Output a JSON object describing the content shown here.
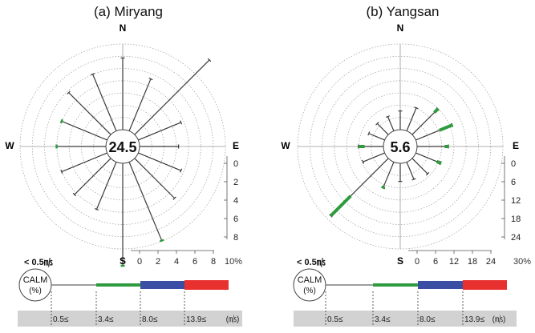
{
  "chart_data": [
    {
      "type": "wind-rose",
      "title": "(a) Miryang",
      "calm_percent": "24.5",
      "directions": [
        "N",
        "E",
        "S",
        "W"
      ],
      "radial_ticks_vertical": [
        "0",
        "2",
        "4",
        "6",
        "8"
      ],
      "radial_ticks_horizontal": [
        "0",
        "2",
        "4",
        "6",
        "8"
      ],
      "radial_unit": "10%",
      "petals": [
        {
          "dir": "N",
          "freq": 7.0
        },
        {
          "dir": "NNE",
          "freq": 5.5
        },
        {
          "dir": "NE",
          "freq": 10.3
        },
        {
          "dir": "ENE",
          "freq": 4.5
        },
        {
          "dir": "E",
          "freq": 3.8
        },
        {
          "dir": "ESE",
          "freq": 4.5
        },
        {
          "dir": "SE",
          "freq": 5.5
        },
        {
          "dir": "SSE",
          "freq": 8.3
        },
        {
          "dir": "S",
          "freq": 10.0
        },
        {
          "dir": "SSW",
          "freq": 5.0
        },
        {
          "dir": "SW",
          "freq": 5.0
        },
        {
          "dir": "WSW",
          "freq": 4.8
        },
        {
          "dir": "W",
          "freq": 4.8
        },
        {
          "dir": "WNW",
          "freq": 4.8
        },
        {
          "dir": "NW",
          "freq": 5.8
        },
        {
          "dir": "NNW",
          "freq": 6.0
        }
      ],
      "speed_colored_petals": [
        {
          "dir": "S",
          "class": "3.4≤"
        },
        {
          "dir": "SSE",
          "class": "3.4≤"
        },
        {
          "dir": "W",
          "class": "3.4≤"
        },
        {
          "dir": "WNW",
          "class": "3.4≤"
        }
      ]
    },
    {
      "type": "wind-rose",
      "title": "(b) Yangsan",
      "calm_percent": "5.6",
      "directions": [
        "N",
        "E",
        "S",
        "W"
      ],
      "radial_ticks_vertical": [
        "0",
        "6",
        "12",
        "18",
        "24"
      ],
      "radial_ticks_horizontal": [
        "0",
        "6",
        "12",
        "18",
        "24"
      ],
      "radial_unit": "30%",
      "petals": [
        {
          "dir": "N",
          "freq": 6.0
        },
        {
          "dir": "NNE",
          "freq": 8.0
        },
        {
          "dir": "NE",
          "freq": 11.5
        },
        {
          "dir": "ENE",
          "freq": 12.5
        },
        {
          "dir": "E",
          "freq": 10.0
        },
        {
          "dir": "ESE",
          "freq": 8.5
        },
        {
          "dir": "SE",
          "freq": 7.0
        },
        {
          "dir": "SSE",
          "freq": 6.0
        },
        {
          "dir": "S",
          "freq": 5.8
        },
        {
          "dir": "SSW",
          "freq": 9.0
        },
        {
          "dir": "SW",
          "freq": 26.0
        },
        {
          "dir": "WSW",
          "freq": 7.5
        },
        {
          "dir": "W",
          "freq": 8.0
        },
        {
          "dir": "WNW",
          "freq": 5.5
        },
        {
          "dir": "NW",
          "freq": 5.0
        },
        {
          "dir": "NNW",
          "freq": 5.0
        }
      ],
      "speed_segments": [
        {
          "dir": "NE",
          "from": 10.0,
          "to": 11.8,
          "class": "3.4≤"
        },
        {
          "dir": "ENE",
          "from": 8.2,
          "to": 12.8,
          "class": "3.4≤"
        },
        {
          "dir": "E",
          "from": 8.8,
          "to": 10.2,
          "class": "3.4≤"
        },
        {
          "dir": "ESE",
          "from": 7.2,
          "to": 8.8,
          "class": "3.4≤"
        },
        {
          "dir": "SW",
          "from": 17.0,
          "to": 26.0,
          "class": "3.4≤"
        },
        {
          "dir": "W",
          "from": 6.0,
          "to": 8.0,
          "class": "3.4≤"
        },
        {
          "dir": "SSW",
          "from": 8.3,
          "to": 9.2,
          "class": "3.4≤"
        }
      ]
    }
  ],
  "legends": [
    {
      "calm_threshold": "< 0.5㎧",
      "calm_label": "CALM",
      "calm_unit": "(%)",
      "bins": [
        "0.5≤",
        "3.4≤",
        "8.0≤",
        "13.9≤"
      ],
      "unit": "(㎧)",
      "colors": [
        "#7f7f7f",
        "#2e9b3e",
        "#3a4fa3",
        "#e8312f"
      ]
    },
    {
      "calm_threshold": "< 0.5㎧",
      "calm_label": "CALM",
      "calm_unit": "(%)",
      "bins": [
        "0.5≤",
        "3.4≤",
        "8.0≤",
        "13.9≤"
      ],
      "unit": "(㎧)",
      "colors": [
        "#7f7f7f",
        "#2e9b3e",
        "#3a4fa3",
        "#e8312f"
      ]
    }
  ]
}
